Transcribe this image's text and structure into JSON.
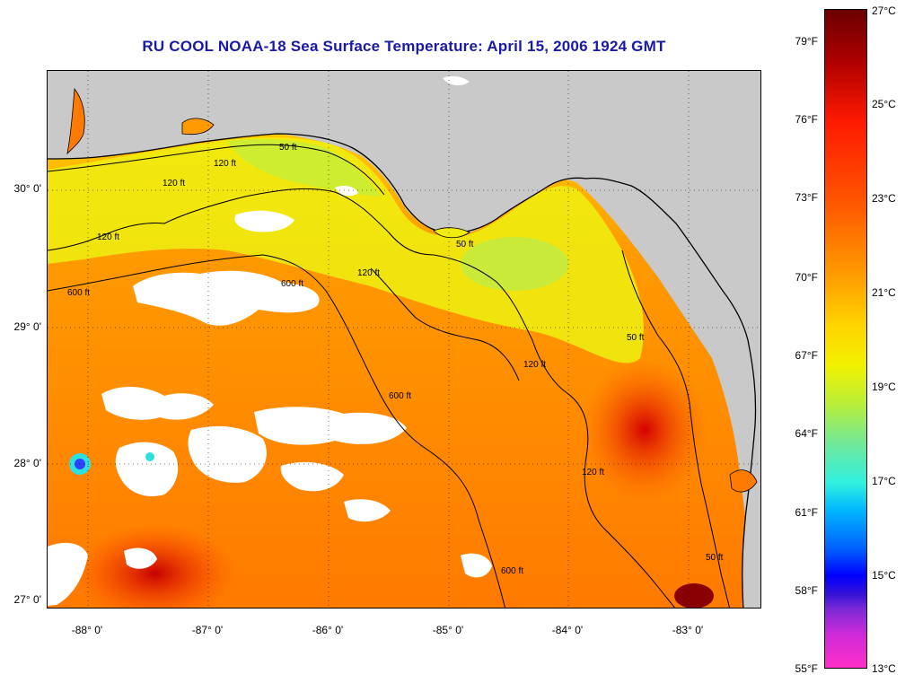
{
  "title": "RU COOL  NOAA-18  Sea Surface Temperature:  April 15, 2006 1924 GMT",
  "axes": {
    "lat_labels": [
      "30° 0'",
      "29° 0'",
      "28° 0'",
      "27° 0'"
    ],
    "lon_labels": [
      "-88° 0'",
      "-87° 0'",
      "-86° 0'",
      "-85° 0'",
      "-84° 0'",
      "-83° 0'"
    ]
  },
  "contours": {
    "labels": [
      "50 ft",
      "120 ft",
      "120 ft",
      "600 ft",
      "120 ft",
      "600 ft",
      "600 ft",
      "120 ft",
      "120 ft",
      "50 ft",
      "50 ft",
      "600 ft",
      "120 ft",
      "50 ft"
    ]
  },
  "colorbar": {
    "fahrenheit": [
      "79°F",
      "76°F",
      "73°F",
      "70°F",
      "67°F",
      "64°F",
      "61°F",
      "58°F",
      "55°F"
    ],
    "celsius": [
      "27°C",
      "25°C",
      "23°C",
      "21°C",
      "19°C",
      "17°C",
      "15°C",
      "13°C"
    ]
  },
  "colors": {
    "land": "#c9c9c9",
    "cloud": "#ffffff",
    "title": "#1a1aa8"
  }
}
